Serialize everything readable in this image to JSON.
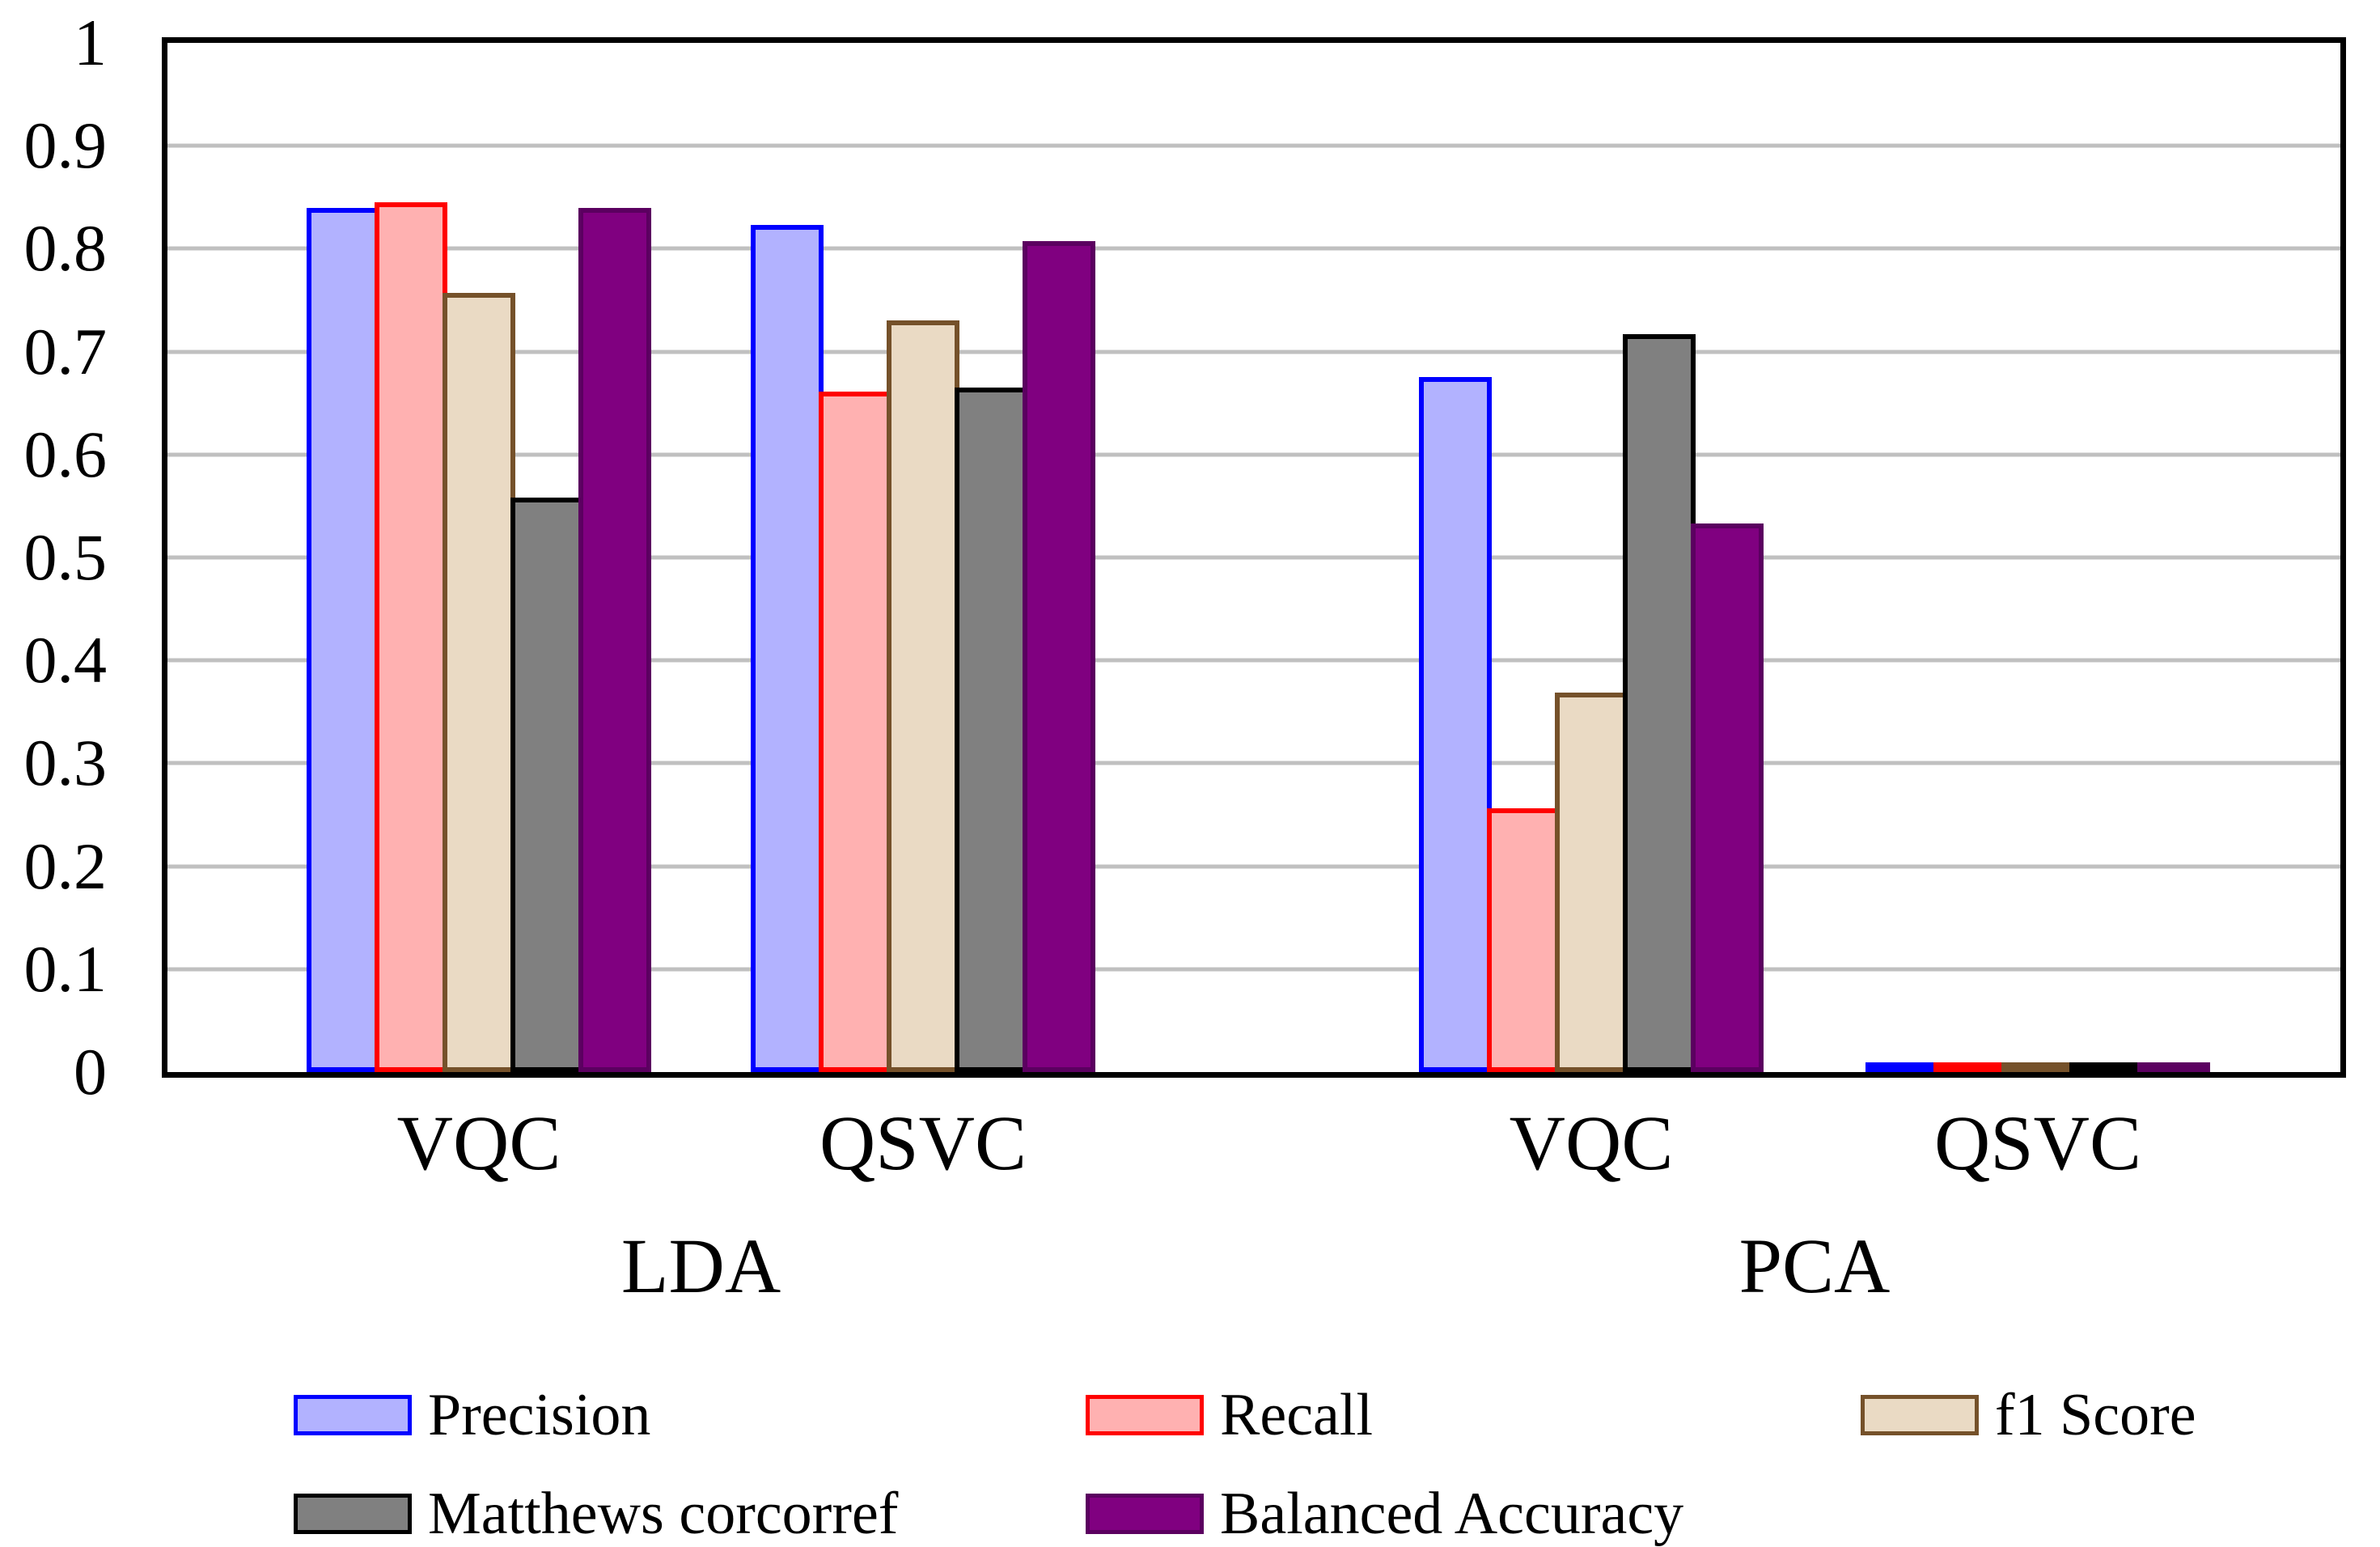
{
  "chart_data": {
    "type": "bar",
    "title": "",
    "xlabel": "",
    "ylabel": "",
    "ylim": [
      0,
      1
    ],
    "ytick_step": 0.1,
    "ytick_labels": [
      "0",
      "0.1",
      "0.2",
      "0.3",
      "0.4",
      "0.5",
      "0.6",
      "0.7",
      "0.8",
      "0.9",
      "1"
    ],
    "grid": "horizontal",
    "gridline_color": "#c0c0c0",
    "axis_border_color": "#000000",
    "legend_position": "bottom",
    "series": [
      {
        "name": "Precision",
        "fill": "#b2b2ff",
        "border": "#0000ff"
      },
      {
        "name": "Recall",
        "fill": "#ffb1b1",
        "border": "#ff0000"
      },
      {
        "name": "f1 Score",
        "fill": "#eadac4",
        "border": "#75512a"
      },
      {
        "name": "Matthews corcorref",
        "fill": "#808080",
        "border": "#000000"
      },
      {
        "name": "Balanced Accuracy",
        "fill": "#800080",
        "border": "#5b0060"
      }
    ],
    "groups": [
      {
        "label": "LDA",
        "clusters": [
          {
            "label": "VQC",
            "values": [
              0.84,
              0.845,
              0.757,
              0.558,
              0.84
            ]
          },
          {
            "label": "QSVC",
            "values": [
              0.823,
              0.661,
              0.73,
              0.665,
              0.807
            ]
          }
        ]
      },
      {
        "label": "PCA",
        "clusters": [
          {
            "label": "VQC",
            "values": [
              0.675,
              0.256,
              0.369,
              0.717,
              0.533
            ]
          },
          {
            "label": "QSVC",
            "values": [
              0.0,
              0.0,
              0.0,
              0.0,
              0.0
            ]
          }
        ]
      }
    ]
  }
}
